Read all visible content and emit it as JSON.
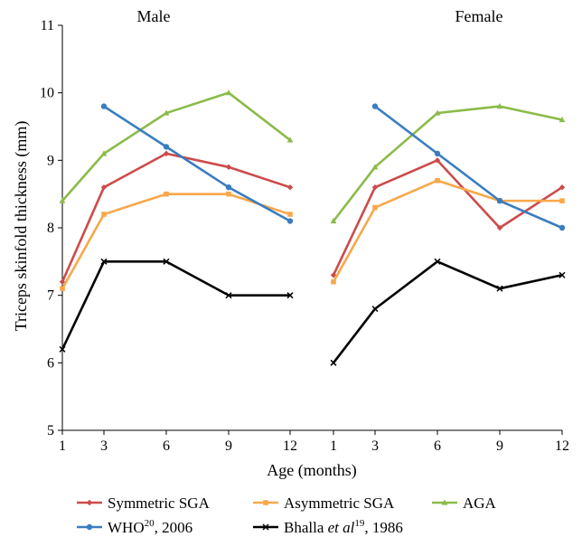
{
  "chart_data": {
    "type": "line",
    "ylabel": "Triceps skinfold thickness (mm)",
    "xlabel": "Age (months)",
    "ylim": [
      5,
      11
    ],
    "yticks": [
      "5",
      "6",
      "7",
      "8",
      "9",
      "10",
      "11"
    ],
    "xticks": [
      "1",
      "3",
      "6",
      "9",
      "12"
    ],
    "x": [
      1,
      3,
      6,
      9,
      12
    ],
    "grid": false,
    "legend_position": "bottom",
    "panels": [
      {
        "title": "Male",
        "series": [
          {
            "key": "sym",
            "values": [
              7.2,
              8.6,
              9.1,
              8.9,
              8.6
            ]
          },
          {
            "key": "asym",
            "values": [
              7.1,
              8.2,
              8.5,
              8.5,
              8.2
            ]
          },
          {
            "key": "aga",
            "values": [
              8.4,
              9.1,
              9.7,
              10.0,
              9.3
            ]
          },
          {
            "key": "who",
            "values": [
              null,
              9.8,
              9.2,
              8.6,
              8.1
            ]
          },
          {
            "key": "bhalla",
            "values": [
              6.2,
              7.5,
              7.5,
              7.0,
              7.0
            ]
          }
        ]
      },
      {
        "title": "Female",
        "series": [
          {
            "key": "sym",
            "values": [
              7.3,
              8.6,
              9.0,
              8.0,
              8.6
            ]
          },
          {
            "key": "asym",
            "values": [
              7.2,
              8.3,
              8.7,
              8.4,
              8.4
            ]
          },
          {
            "key": "aga",
            "values": [
              8.1,
              8.9,
              9.7,
              9.8,
              9.6
            ]
          },
          {
            "key": "who",
            "values": [
              null,
              9.8,
              9.1,
              8.4,
              8.0
            ]
          },
          {
            "key": "bhalla",
            "values": [
              6.0,
              6.8,
              7.5,
              7.1,
              7.3
            ]
          }
        ]
      }
    ],
    "legend": [
      {
        "key": "sym",
        "label": "Symmetric SGA",
        "color": "#cc4b4b",
        "marker": "diamond"
      },
      {
        "key": "asym",
        "label": "Asymmetric SGA",
        "color": "#f7a84a",
        "marker": "square"
      },
      {
        "key": "aga",
        "label": "AGA",
        "color": "#8bbb4a",
        "marker": "triangle"
      },
      {
        "key": "who",
        "label_main": "WHO",
        "label_sup": "20",
        "label_rest": ", 2006",
        "color": "#3a7dc0",
        "marker": "circle"
      },
      {
        "key": "bhalla",
        "label_main": "Bhalla ",
        "label_italic": "et al",
        "label_sup": "19",
        "label_rest": ", 1986",
        "color": "#000000",
        "marker": "x"
      }
    ]
  }
}
